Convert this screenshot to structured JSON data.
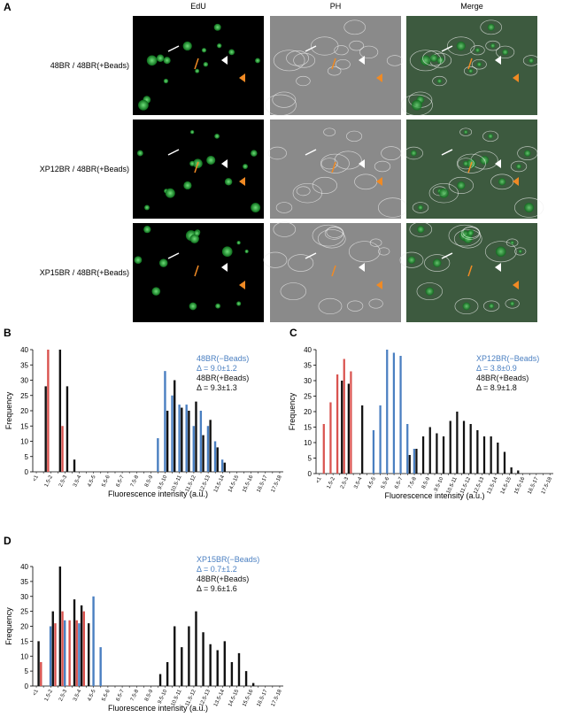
{
  "panel_a": {
    "label": "A",
    "columns": [
      "EdU",
      "PH",
      "Merge"
    ],
    "rows": [
      "48BR / 48BR(+Beads)",
      "XP12BR / 48BR(+Beads)",
      "XP15BR / 48BR(+Beads)"
    ]
  },
  "chart_data": [
    {
      "type": "bar",
      "panel": "B",
      "y_label": "Frequency",
      "x_label": "Fluorescence intensity (a.u.)",
      "categories": [
        "<1",
        null,
        "1.5-2",
        null,
        "2.5-3",
        null,
        "3.5-4",
        null,
        "4.5-5",
        null,
        "5.5-6",
        null,
        "6.5-7",
        null,
        "7.5-8",
        null,
        "8.5-9",
        null,
        "9.5-10",
        null,
        "10.5-11",
        null,
        "11.5-12",
        null,
        "12.5-13",
        null,
        "13.5-14",
        null,
        "14.5-15",
        null,
        "15.5-16",
        null,
        "16.5-17",
        null,
        "17.5-18"
      ],
      "ylim": [
        0,
        40
      ],
      "yticks": [
        0,
        5,
        10,
        15,
        20,
        25,
        30,
        35,
        40
      ],
      "series": [
        {
          "color": "#d9534f",
          "values": [
            0,
            0,
            40,
            0,
            15,
            0,
            0,
            0,
            0,
            0,
            0,
            0,
            0,
            0,
            0,
            0,
            0,
            0,
            0,
            0,
            0,
            0,
            0,
            0,
            0,
            0,
            0,
            0,
            0,
            0,
            0,
            0,
            0,
            0,
            0
          ]
        },
        {
          "name": "48BR(−Beads)",
          "stat": "Δ = 9.0±1.2",
          "color": "#4a7fc1",
          "values": [
            0,
            0,
            0,
            0,
            0,
            0,
            0,
            0,
            0,
            0,
            0,
            0,
            0,
            0,
            0,
            0,
            0,
            11,
            33,
            25,
            22,
            22,
            15,
            20,
            15,
            10,
            4,
            0,
            0,
            0,
            0,
            0,
            0,
            0,
            0
          ]
        },
        {
          "name": "48BR(+Beads)",
          "stat": "Δ = 9.3±1.3",
          "color": "#111111",
          "values": [
            0,
            28,
            0,
            40,
            28,
            4,
            0,
            0,
            0,
            0,
            0,
            0,
            0,
            0,
            0,
            0,
            0,
            0,
            20,
            30,
            21,
            20,
            23,
            12,
            17,
            8,
            3,
            0,
            0,
            0,
            0,
            0,
            0,
            0,
            0
          ]
        }
      ]
    },
    {
      "type": "bar",
      "panel": "C",
      "y_label": "Frequency",
      "x_label": "Fluorescence intensity (a.u.)",
      "categories": [
        "<1",
        null,
        "1.5-2",
        null,
        "2.5-3",
        null,
        "3.5-4",
        null,
        "4.5-5",
        null,
        "5.5-6",
        null,
        "6.5-7",
        null,
        "7.5-8",
        null,
        "8.5-9",
        null,
        "9.5-10",
        null,
        "10.5-11",
        null,
        "11.5-12",
        null,
        "12.5-13",
        null,
        "13.5-14",
        null,
        "14.5-15",
        null,
        "15.5-16",
        null,
        "16.5-17",
        null,
        "17.5-18"
      ],
      "ylim": [
        0,
        40
      ],
      "yticks": [
        0,
        5,
        10,
        15,
        20,
        25,
        30,
        35,
        40
      ],
      "series": [
        {
          "color": "#d9534f",
          "values": [
            0,
            16,
            23,
            32,
            37,
            33,
            0,
            0,
            0,
            0,
            0,
            0,
            0,
            0,
            0,
            0,
            0,
            0,
            0,
            0,
            0,
            0,
            0,
            0,
            0,
            0,
            0,
            0,
            0,
            0,
            0,
            0,
            0,
            0,
            0
          ]
        },
        {
          "name": "XP12BR(−Beads)",
          "stat": "Δ = 3.8±0.9",
          "color": "#4a7fc1",
          "values": [
            0,
            0,
            0,
            0,
            0,
            0,
            0,
            0,
            14,
            22,
            40,
            39,
            38,
            16,
            8,
            0,
            0,
            0,
            0,
            0,
            0,
            0,
            0,
            0,
            0,
            0,
            0,
            0,
            0,
            0,
            0,
            0,
            0,
            0,
            0
          ]
        },
        {
          "name": "48BR(+Beads)",
          "stat": "Δ = 8.9±1.8",
          "color": "#111111",
          "values": [
            0,
            0,
            0,
            30,
            29,
            0,
            22,
            0,
            0,
            0,
            0,
            0,
            0,
            6,
            8,
            12,
            15,
            13,
            12,
            17,
            20,
            17,
            16,
            14,
            12,
            12,
            10,
            7,
            2,
            1,
            0,
            0,
            0,
            0,
            0
          ]
        }
      ]
    },
    {
      "type": "bar",
      "panel": "D",
      "y_label": "Frequency",
      "x_label": "Fluorescence intensity (a.u.)",
      "categories": [
        "<1",
        null,
        "1.5-2",
        null,
        "2.5-3",
        null,
        "3.5-4",
        null,
        "4.5-5",
        null,
        "5.5-6",
        null,
        "6.5-7",
        null,
        "7.5-8",
        null,
        "8.5-9",
        null,
        "9.5-10",
        null,
        "10.5-11",
        null,
        "11.5-12",
        null,
        "12.5-13",
        null,
        "13.5-14",
        null,
        "14.5-15",
        null,
        "15.5-16",
        null,
        "16.5-17",
        null,
        "17.5-18"
      ],
      "ylim": [
        0,
        40
      ],
      "yticks": [
        0,
        5,
        10,
        15,
        20,
        25,
        30,
        35,
        40
      ],
      "series": [
        {
          "color": "#d9534f",
          "values": [
            0,
            8,
            0,
            21,
            25,
            22,
            22,
            25,
            0,
            0,
            0,
            0,
            0,
            0,
            0,
            0,
            0,
            0,
            0,
            0,
            0,
            0,
            0,
            0,
            0,
            0,
            0,
            0,
            0,
            0,
            0,
            0,
            0,
            0,
            0
          ]
        },
        {
          "name": "XP15BR(−Beads)",
          "stat": "Δ = 0.7±1.2",
          "color": "#4a7fc1",
          "values": [
            0,
            0,
            20,
            0,
            22,
            0,
            21,
            0,
            30,
            13,
            0,
            0,
            0,
            0,
            0,
            0,
            0,
            0,
            0,
            0,
            0,
            0,
            0,
            0,
            0,
            0,
            0,
            0,
            0,
            0,
            0,
            0,
            0,
            0,
            0
          ]
        },
        {
          "name": "48BR(+Beads)",
          "stat": "Δ = 9.6±1.6",
          "color": "#111111",
          "values": [
            15,
            0,
            25,
            40,
            0,
            29,
            27,
            21,
            0,
            0,
            0,
            0,
            0,
            0,
            0,
            0,
            0,
            4,
            8,
            20,
            13,
            20,
            25,
            18,
            14,
            12,
            15,
            8,
            11,
            5,
            1,
            0,
            0,
            0,
            0
          ]
        }
      ]
    }
  ]
}
